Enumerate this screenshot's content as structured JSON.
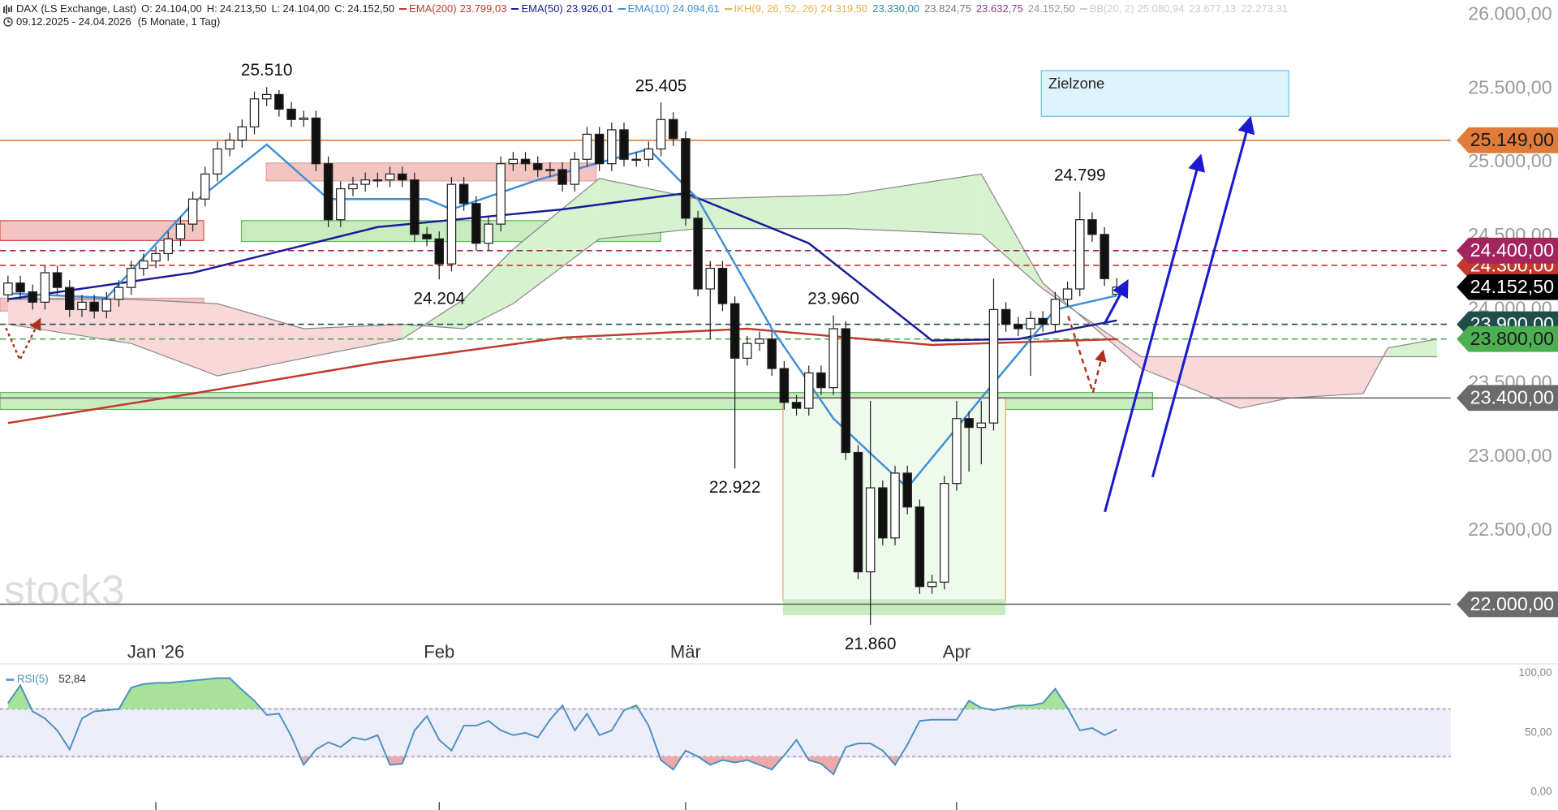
{
  "header": {
    "symbol": "DAX (LS Exchange, Last)",
    "quote": [
      {
        "key": "O:",
        "value": "24.104,00"
      },
      {
        "key": "H:",
        "value": "24.213,50"
      },
      {
        "key": "L:",
        "value": "24.104,00"
      },
      {
        "key": "C:",
        "value": "24.152,50"
      }
    ],
    "range": "09.12.2025 - 24.04.2026",
    "span": "(5 Monate, 1 Tag)"
  },
  "chart_data": {
    "type": "candlestick",
    "grid": false,
    "watermark": "stock3",
    "zone_label": "Zielzone",
    "up_color": "#ffffff",
    "down_color": "#111111",
    "xlim": [
      -0.65,
      117.1
    ],
    "ylim": [
      21784,
      26101
    ],
    "xticks": [
      {
        "value": 12,
        "label": "Jan '26"
      },
      {
        "value": 35,
        "label": "Feb"
      },
      {
        "value": 55,
        "label": "Mär"
      },
      {
        "value": 77,
        "label": "Apr"
      }
    ],
    "yticks": [
      {
        "value": 22000,
        "label": "22.000,00"
      },
      {
        "value": 22500,
        "label": "22.500,00"
      },
      {
        "value": 23000,
        "label": "23.000,00"
      },
      {
        "value": 23500,
        "label": "23.500,00"
      },
      {
        "value": 24000,
        "label": "24.000,00"
      },
      {
        "value": 24500,
        "label": "24.500,00"
      },
      {
        "value": 25000,
        "label": "25.000,00"
      },
      {
        "value": 25500,
        "label": "25.500,00"
      },
      {
        "value": 26000,
        "label": "26.000,00"
      }
    ],
    "open": [
      24100,
      24180,
      24120,
      24050,
      24250,
      24150,
      24000,
      24050,
      23990,
      24070,
      24150,
      24280,
      24330,
      24380,
      24480,
      24580,
      24750,
      24920,
      25090,
      25150,
      25240,
      25430,
      25460,
      25360,
      25290,
      25300,
      24990,
      24610,
      24820,
      24850,
      24880,
      24880,
      24920,
      24880,
      24510,
      24480,
      24310,
      24850,
      24720,
      24450,
      24580,
      24990,
      25020,
      24990,
      24950,
      24950,
      24850,
      25020,
      25190,
      24990,
      25220,
      25020,
      25020,
      25090,
      25290,
      25160,
      24620,
      24140,
      24280,
      24040,
      23670,
      23770,
      23800,
      23600,
      23370,
      23330,
      23570,
      23470,
      23870,
      23030,
      22220,
      22790,
      22450,
      22890,
      22660,
      22120,
      22150,
      22820,
      23260,
      23200,
      23230,
      24000,
      23900,
      23870,
      23940,
      23900,
      24070,
      24140,
      24610,
      24510,
      24104
    ],
    "high": [
      24230,
      24230,
      24170,
      24300,
      24300,
      24200,
      24100,
      24100,
      24120,
      24200,
      24330,
      24380,
      24430,
      24530,
      24630,
      24800,
      24970,
      25140,
      25200,
      25290,
      25480,
      25510,
      25490,
      25410,
      25350,
      25350,
      25040,
      24870,
      24900,
      24930,
      24930,
      24970,
      24970,
      24930,
      24560,
      24530,
      24900,
      24900,
      24770,
      24630,
      25040,
      25070,
      25070,
      25040,
      25000,
      25000,
      25070,
      25240,
      25240,
      25270,
      25270,
      25070,
      25140,
      25405,
      25340,
      25210,
      24670,
      24330,
      24330,
      24090,
      23820,
      23850,
      23850,
      23650,
      23420,
      23620,
      23620,
      23960,
      23920,
      23080,
      23380,
      22840,
      22940,
      22940,
      22710,
      22200,
      22870,
      23380,
      23310,
      23380,
      24210,
      24050,
      23950,
      23990,
      23990,
      24120,
      24190,
      24799,
      24660,
      24560,
      24213.5
    ],
    "low": [
      24050,
      24070,
      24000,
      24000,
      24100,
      23950,
      23950,
      23940,
      23940,
      24020,
      24100,
      24230,
      24280,
      24330,
      24430,
      24530,
      24700,
      24870,
      25040,
      25100,
      25190,
      25380,
      25310,
      25240,
      25240,
      24940,
      24560,
      24560,
      24770,
      24800,
      24830,
      24830,
      24830,
      24460,
      24430,
      24204,
      24260,
      24670,
      24400,
      24400,
      24530,
      24940,
      24940,
      24900,
      24900,
      24800,
      24800,
      24970,
      24940,
      24940,
      24970,
      24970,
      24970,
      25040,
      25110,
      24570,
      24090,
      23800,
      23990,
      22922,
      23620,
      23720,
      23550,
      23320,
      23280,
      23280,
      23420,
      23420,
      22980,
      22170,
      21860,
      22400,
      22400,
      22610,
      22070,
      22070,
      22100,
      22770,
      22900,
      22950,
      23180,
      23850,
      23820,
      23550,
      23850,
      23850,
      24020,
      24090,
      24460,
      24160,
      24104
    ],
    "close": [
      24180,
      24120,
      24050,
      24250,
      24150,
      24000,
      24050,
      23990,
      24070,
      24150,
      24280,
      24330,
      24380,
      24480,
      24580,
      24750,
      24920,
      25090,
      25150,
      25240,
      25430,
      25460,
      25360,
      25290,
      25300,
      24990,
      24610,
      24820,
      24850,
      24880,
      24880,
      24920,
      24880,
      24510,
      24480,
      24310,
      24850,
      24720,
      24450,
      24580,
      24990,
      25020,
      24990,
      24950,
      24950,
      24850,
      25020,
      25190,
      24990,
      25220,
      25020,
      25020,
      25090,
      25290,
      25160,
      24620,
      24140,
      24280,
      24040,
      23670,
      23770,
      23800,
      23600,
      23370,
      23330,
      23570,
      23470,
      23870,
      23030,
      22220,
      22790,
      22450,
      22890,
      22660,
      22120,
      22150,
      22820,
      23260,
      23200,
      23230,
      24000,
      23900,
      23870,
      23940,
      23900,
      24070,
      24140,
      24610,
      24510,
      24210,
      24152.5
    ],
    "indicators": [
      {
        "name": "EMA(200)",
        "legend_value": "23.799,03",
        "color": "#c0392b",
        "x": [
          0,
          15,
          30,
          45,
          60,
          75,
          90
        ],
        "values": [
          23230,
          23430,
          23640,
          23810,
          23870,
          23760,
          23799
        ]
      },
      {
        "name": "EMA(50)",
        "legend_value": "23.926,01",
        "color": "#1a1a9a",
        "x": [
          0,
          15,
          30,
          45,
          55,
          65,
          75,
          82,
          90
        ],
        "values": [
          24070,
          24250,
          24560,
          24680,
          24790,
          24450,
          23790,
          23800,
          23926
        ]
      },
      {
        "name": "EMA(10)",
        "legend_value": "24.094,61",
        "color": "#3d8fd6",
        "x": [
          0,
          8,
          15,
          21,
          26,
          34,
          36,
          43,
          52,
          56,
          62,
          67,
          73,
          79,
          85,
          90
        ],
        "values": [
          24110,
          24080,
          24720,
          25120,
          24750,
          24750,
          24680,
          24880,
          25090,
          24750,
          23870,
          23260,
          22790,
          23400,
          24000,
          24095
        ]
      }
    ],
    "ikh": {
      "name": "IKH(9, 26, 52, 26)",
      "legend_values": [
        "24.319,50",
        "23.330,00",
        "23.824,75",
        "23.632,75",
        "24.152,50"
      ],
      "colors": [
        "#e8b04a",
        "#2e8b9a",
        "#777777",
        "#8a3f8a",
        "#999999"
      ],
      "color": "#e8b04a"
    },
    "bb": {
      "name": "BB(20, 2)",
      "legend_values": [
        "25.080,94",
        "23.677,13",
        "22.273,31"
      ],
      "color": "#cccccc"
    },
    "cloud": {
      "x": [
        0,
        10,
        17,
        24,
        32,
        37,
        41,
        48,
        56,
        68,
        79,
        84,
        92,
        100,
        104,
        110,
        112,
        116
      ],
      "span_a": [
        23900,
        23770,
        23550,
        23670,
        23800,
        24070,
        24410,
        24890,
        24750,
        24780,
        24920,
        24180,
        23600,
        23330,
        23400,
        23430,
        23740,
        23800
      ],
      "span_b": [
        24070,
        24070,
        24040,
        23870,
        23900,
        23870,
        24040,
        24480,
        24550,
        24550,
        24510,
        24140,
        23680,
        23680,
        23680,
        23680,
        23680,
        23680
      ],
      "up_color": "#d6f2cf",
      "down_color": "#f8d8d8",
      "line_color": "#888888"
    },
    "levels": [
      {
        "value": 25149,
        "label": "25.149,00",
        "color": "#e07b39",
        "text_color": "#1a1a1a",
        "style": "solid"
      },
      {
        "value": 24300,
        "label": "24.300,00",
        "color": "#c0392b",
        "text_color": "#ffffff",
        "style": "dashed"
      },
      {
        "value": 24400,
        "label": "24.400,00",
        "color": "#a3245e",
        "text_color": "#ffffff",
        "style": "dashed"
      },
      {
        "value": 24152.5,
        "label": "24.152,50",
        "color": "#000000",
        "text_color": "#ffffff",
        "style": "none"
      },
      {
        "value": 23900,
        "label": "23.900,00",
        "color": "#1f4e4a",
        "text_color": "#ffffff",
        "style": "dashed"
      },
      {
        "value": 23800,
        "label": "23.800,00",
        "color": "#4caf50",
        "text_color": "#1a1a1a",
        "style": "dashed"
      },
      {
        "value": 23400,
        "label": "23.400,00",
        "color": "#6b6b6b",
        "text_color": "#ffffff",
        "style": "solid"
      },
      {
        "value": 22000,
        "label": "22.000,00",
        "color": "#6b6b6b",
        "text_color": "#ffffff",
        "style": "solid"
      }
    ],
    "annotations": [
      {
        "label": "25.510",
        "value": 25510,
        "index": 21,
        "position": "above"
      },
      {
        "label": "25.405",
        "value": 25405,
        "index": 53,
        "position": "above"
      },
      {
        "label": "24.204",
        "value": 24204,
        "index": 35,
        "position": "below"
      },
      {
        "label": "22.922",
        "value": 22922,
        "index": 59,
        "position": "below"
      },
      {
        "label": "23.960",
        "value": 23960,
        "index": 67,
        "position": "above"
      },
      {
        "label": "21.860",
        "value": 21860,
        "index": 70,
        "position": "below"
      },
      {
        "label": "24.799",
        "value": 24799,
        "index": 87,
        "position": "above"
      }
    ],
    "rsi": {
      "name": "RSI(5)",
      "legend_value": "52,84",
      "color": "#4a90c0",
      "ylim": [
        -15,
        108
      ],
      "levels": [
        30,
        70
      ],
      "yticks": [
        {
          "value": 100,
          "label": "100,00"
        },
        {
          "value": 50,
          "label": "50,00"
        },
        {
          "value": 0,
          "label": "0,00"
        }
      ],
      "values": [
        75,
        90,
        68,
        62,
        52,
        36,
        62,
        68,
        69,
        70,
        88,
        91,
        92,
        92,
        93,
        94,
        95,
        96,
        96,
        86,
        77,
        65,
        66,
        47,
        23,
        36,
        42,
        38,
        46,
        44,
        48,
        23,
        24,
        52,
        64,
        44,
        35,
        56,
        56,
        60,
        52,
        48,
        50,
        46,
        61,
        73,
        52,
        66,
        48,
        52,
        69,
        73,
        56,
        27,
        19,
        35,
        30,
        23,
        27,
        25,
        27,
        23,
        19,
        31,
        44,
        27,
        24,
        15,
        38,
        41,
        41,
        35,
        23,
        40,
        60,
        61,
        61,
        61,
        77,
        71,
        69,
        71,
        73,
        73,
        75,
        87,
        71,
        52,
        54,
        48,
        52.84
      ]
    }
  }
}
